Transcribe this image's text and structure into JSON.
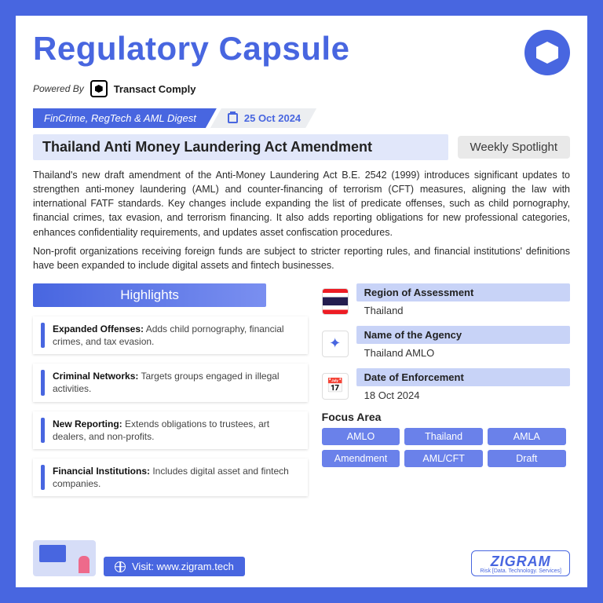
{
  "brand": {
    "title": "Regulatory Capsule",
    "powered_by_label": "Powered By",
    "powered_by_name": "Transact Comply"
  },
  "ribbon": {
    "digest": "FinCrime, RegTech & AML Digest",
    "date": "25 Oct 2024"
  },
  "headline": {
    "text": "Thailand Anti Money Laundering Act Amendment",
    "spotlight": "Weekly Spotlight"
  },
  "body": {
    "p1": "Thailand's new draft amendment of the Anti-Money Laundering Act B.E. 2542 (1999) introduces significant updates to strengthen anti-money laundering (AML) and counter-financing of terrorism (CFT) measures, aligning the law with international FATF standards. Key changes include expanding the list of predicate offenses, such as child pornography, financial crimes, tax evasion, and terrorism financing. It also adds reporting obligations for new professional categories, enhances confidentiality requirements, and updates asset confiscation procedures.",
    "p2": "Non-profit organizations receiving foreign funds are subject to stricter reporting rules, and financial institutions' definitions have been expanded to include digital assets and fintech businesses."
  },
  "highlights": {
    "title": "Highlights",
    "items": [
      {
        "bold": "Expanded Offenses:",
        "text": " Adds child pornography, financial crimes, and tax evasion."
      },
      {
        "bold": "Criminal Networks:",
        "text": " Targets groups engaged in illegal activities."
      },
      {
        "bold": "New Reporting:",
        "text": " Extends obligations to trustees, art dealers, and non-profits."
      },
      {
        "bold": "Financial Institutions:",
        "text": " Includes digital asset and fintech companies."
      }
    ]
  },
  "meta": {
    "region_label": "Region of Assessment",
    "region_value": "Thailand",
    "agency_label": "Name of the Agency",
    "agency_value": "Thailand AMLO",
    "date_label": "Date of Enforcement",
    "date_value": "18 Oct 2024",
    "focus_label": "Focus Area",
    "tags": [
      "AMLO",
      "Thailand",
      "AMLA",
      "Amendment",
      "AML/CFT",
      "Draft"
    ]
  },
  "footer": {
    "visit_label": "Visit: www.zigram.tech",
    "zigram_name": "ZIGRAM",
    "zigram_tagline": "Risk [Data. Technology. Services]"
  },
  "colors": {
    "primary": "#4866e0",
    "accent_bg": "#e1e7fa",
    "meta_bg": "#c8d3f7",
    "tag_bg": "#6a81ea"
  }
}
